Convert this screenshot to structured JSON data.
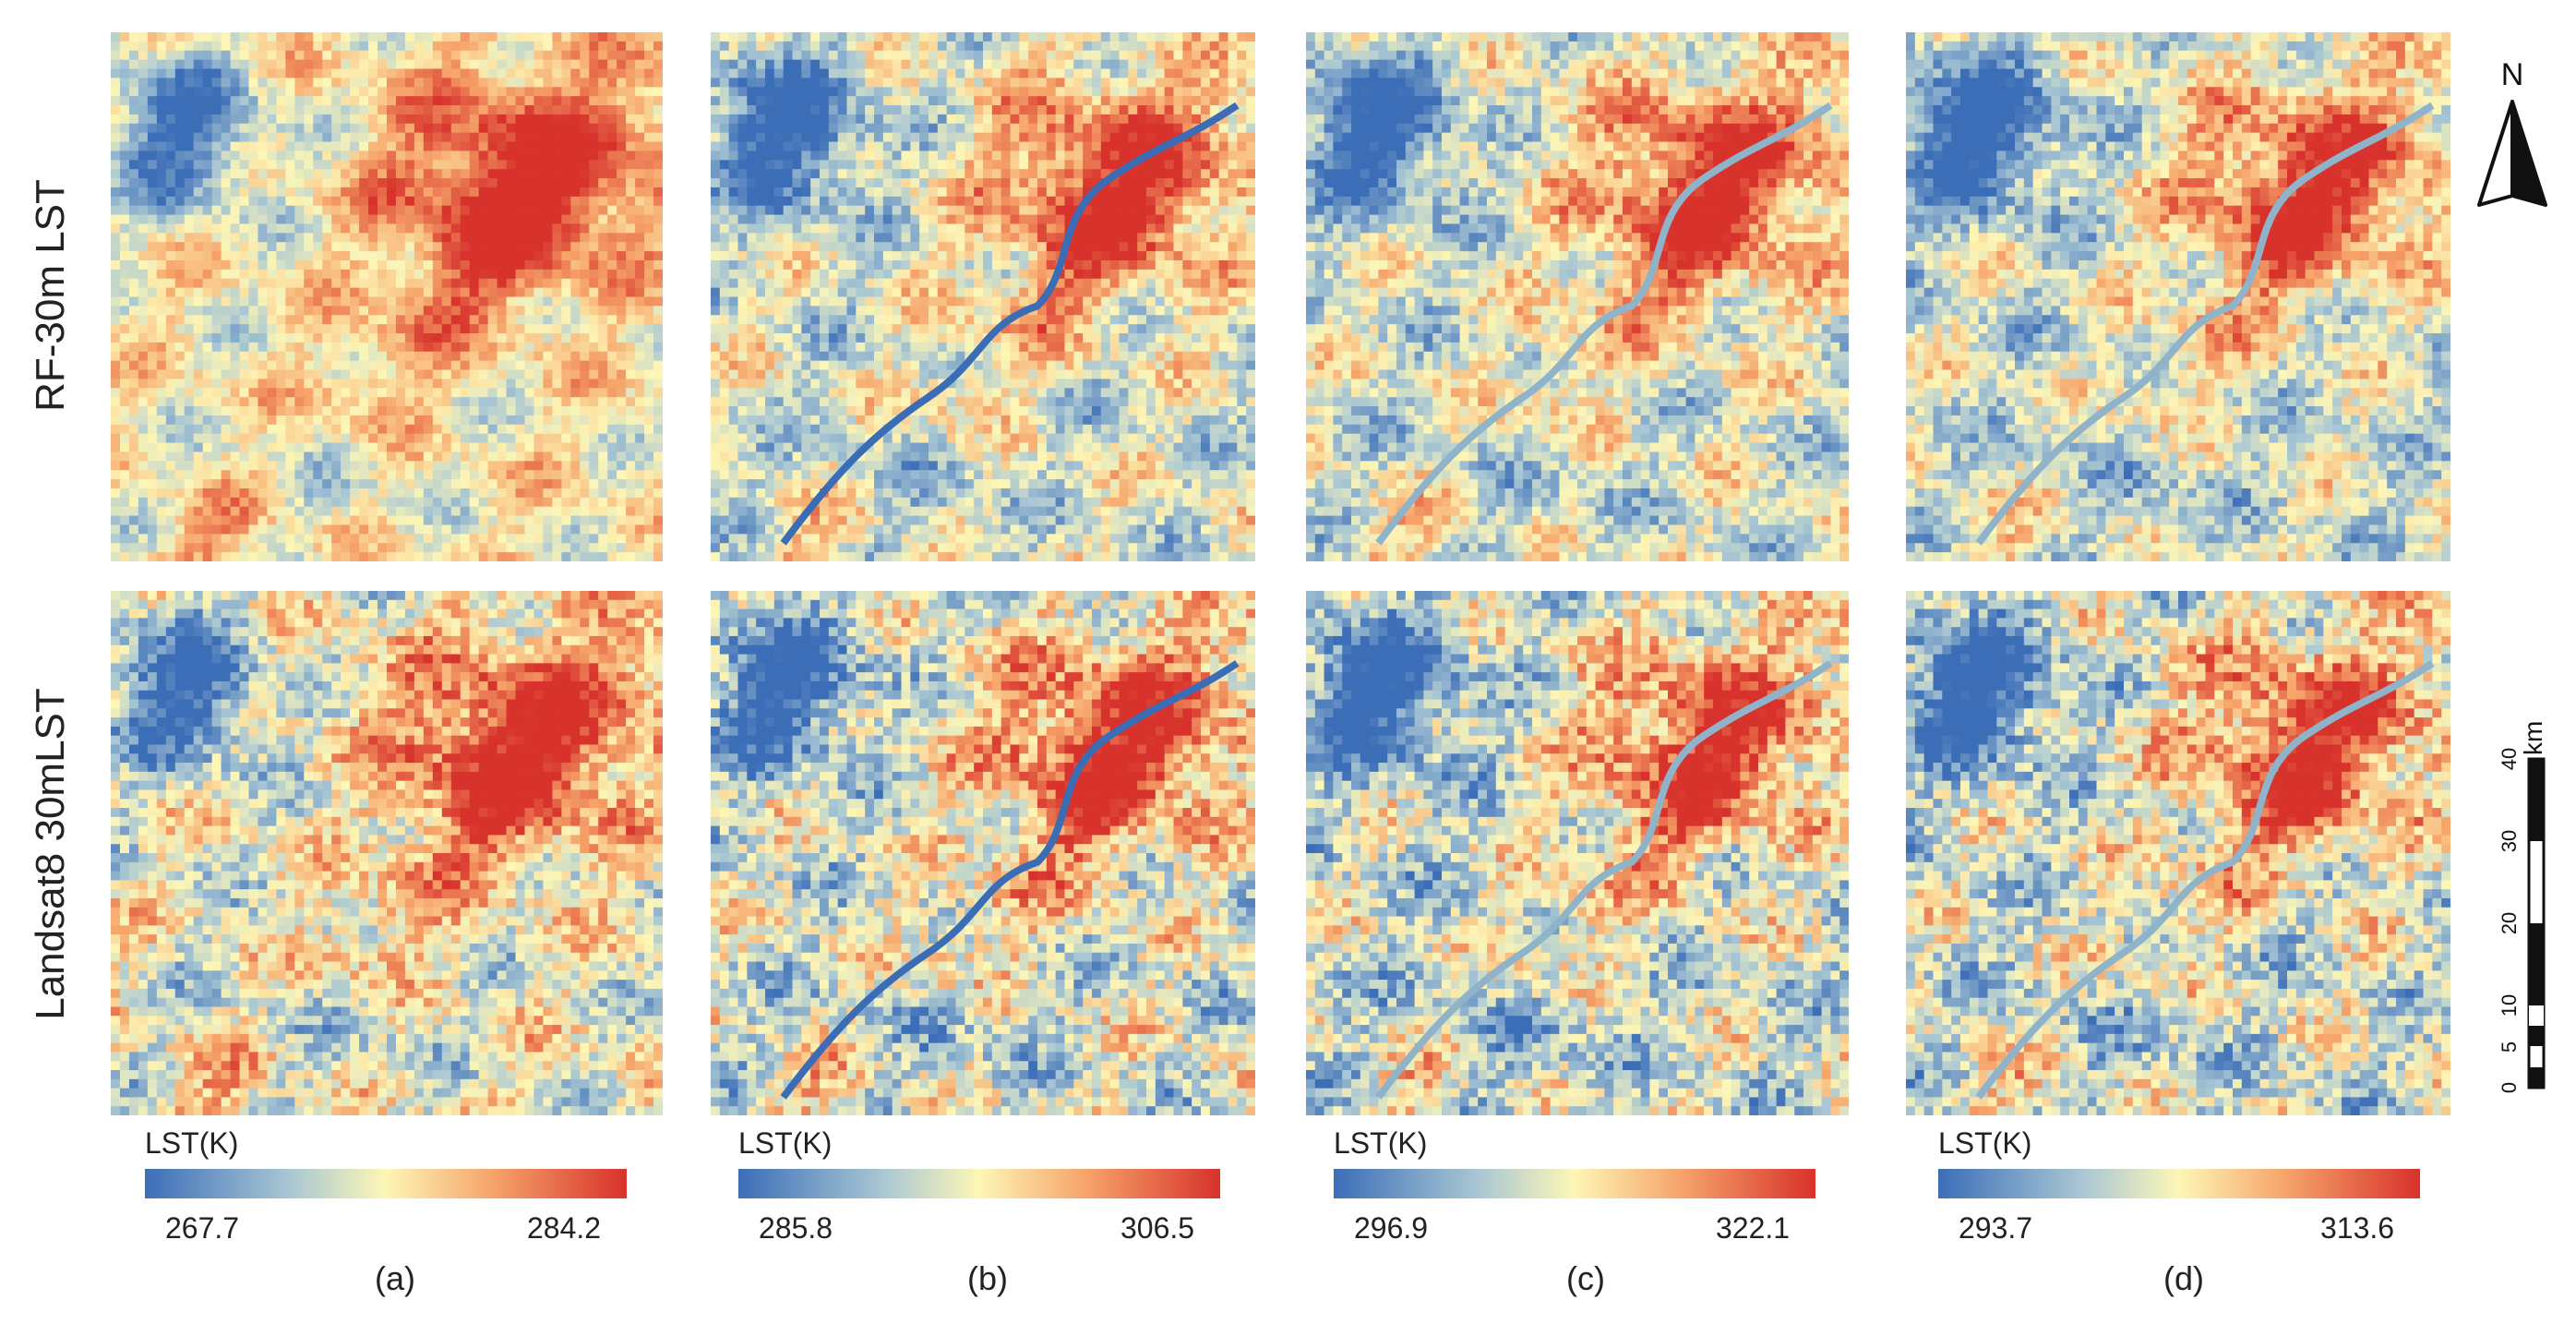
{
  "rows": [
    {
      "label": "RF-30m LST"
    },
    {
      "label": "Landsat8 30mLST"
    }
  ],
  "columns": [
    {
      "letter": "(a)",
      "legend_title": "LST(K)",
      "min": "267.7",
      "max": "284.2"
    },
    {
      "letter": "(b)",
      "legend_title": "LST(K)",
      "min": "285.8",
      "max": "306.5"
    },
    {
      "letter": "(c)",
      "legend_title": "LST(K)",
      "min": "296.9",
      "max": "322.1"
    },
    {
      "letter": "(d)",
      "legend_title": "LST(K)",
      "min": "293.7",
      "max": "313.6"
    }
  ],
  "north_arrow": {
    "label": "N"
  },
  "scale_bar": {
    "unit": "km",
    "ticks": [
      "40",
      "30",
      "20",
      "10",
      "5",
      "0"
    ]
  },
  "colors": {
    "cold": "#3c6eb8",
    "cool": "#a9c7d3",
    "mid": "#fdf6b6",
    "warm": "#f6a46a",
    "hot": "#d7322b",
    "river": "#3a6db5"
  }
}
